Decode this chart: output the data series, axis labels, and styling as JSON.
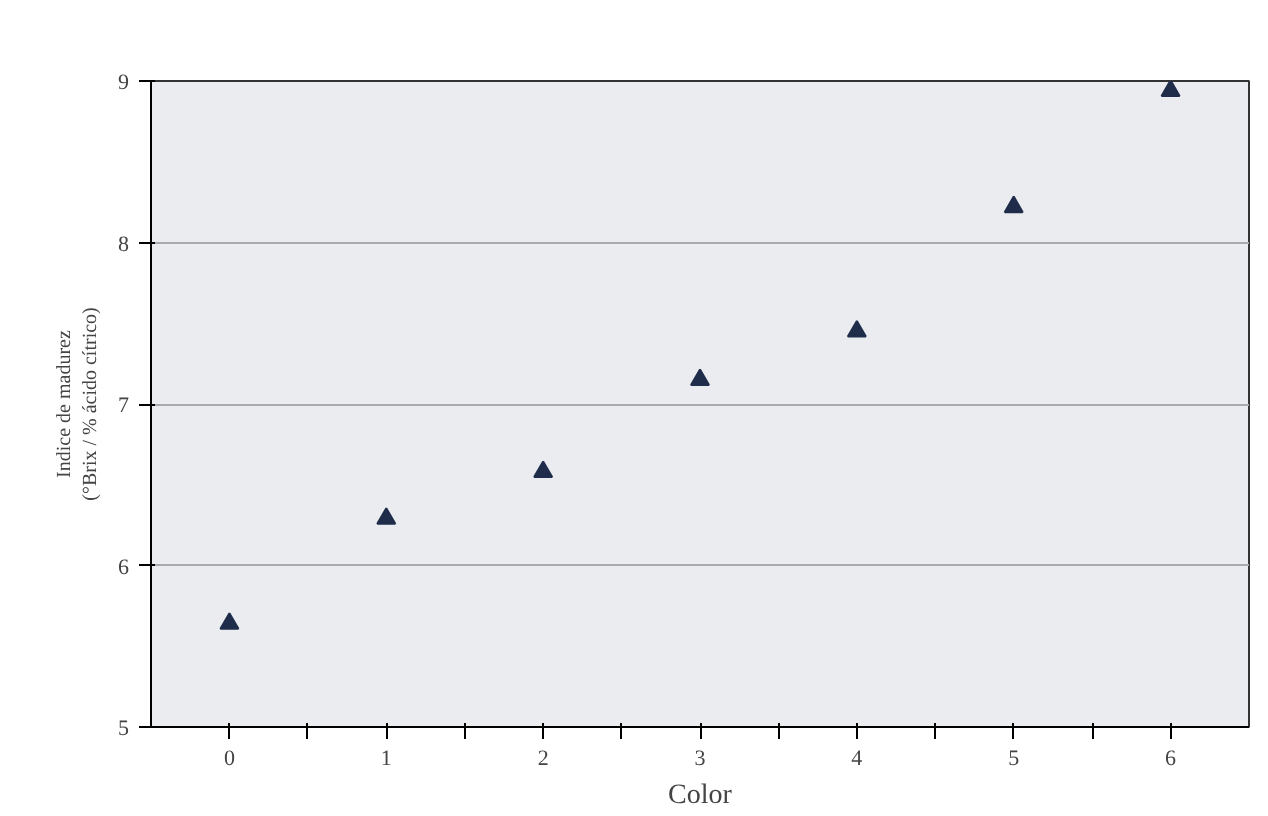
{
  "chart_data": {
    "type": "scatter",
    "xlabel": "Color",
    "ylabel": "Indice de madurez\n(°Brix / % ácido cítrico)",
    "x": [
      0,
      1,
      2,
      3,
      4,
      5,
      6
    ],
    "series": [
      {
        "color": "#1f2d4a",
        "values": [
          5.64,
          6.29,
          6.58,
          7.15,
          7.45,
          8.22,
          8.94
        ]
      }
    ],
    "xlim": [
      -0.5,
      6.5
    ],
    "ylim": [
      5,
      9
    ],
    "xticks": [
      0,
      {
        "value": 0.5,
        "label": null
      },
      1,
      {
        "value": 1.5,
        "label": null
      },
      2,
      {
        "value": 2.5,
        "label": null
      },
      3,
      {
        "value": 3.5,
        "label": null
      },
      4,
      {
        "value": 4.5,
        "label": null
      },
      5,
      {
        "value": 5.5,
        "label": null
      },
      6
    ],
    "yticks": [
      5,
      6,
      7,
      8,
      9
    ],
    "grid": "y",
    "marker": "triangle"
  }
}
